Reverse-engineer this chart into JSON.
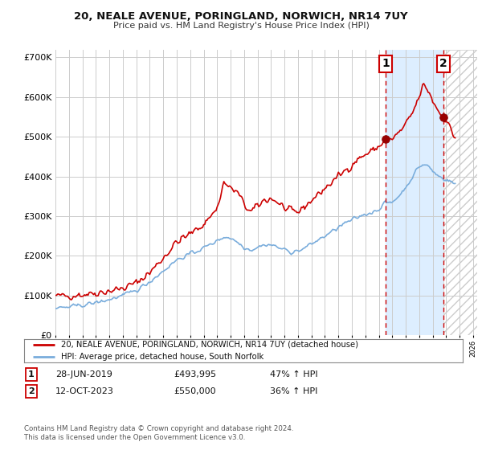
{
  "title": "20, NEALE AVENUE, PORINGLAND, NORWICH, NR14 7UY",
  "subtitle": "Price paid vs. HM Land Registry's House Price Index (HPI)",
  "legend_line1": "20, NEALE AVENUE, PORINGLAND, NORWICH, NR14 7UY (detached house)",
  "legend_line2": "HPI: Average price, detached house, South Norfolk",
  "footnote": "Contains HM Land Registry data © Crown copyright and database right 2024.\nThis data is licensed under the Open Government Licence v3.0.",
  "annotation1_label": "1",
  "annotation1_date": "28-JUN-2019",
  "annotation1_price": "£493,995",
  "annotation1_hpi": "47% ↑ HPI",
  "annotation2_label": "2",
  "annotation2_date": "12-OCT-2023",
  "annotation2_price": "£550,000",
  "annotation2_hpi": "36% ↑ HPI",
  "house_color": "#cc0000",
  "hpi_color": "#7aaddc",
  "marker1_color": "#990000",
  "marker2_color": "#990000",
  "vline_color": "#cc0000",
  "shaded_color": "#ddeeff",
  "hatch_color": "#cccccc",
  "ylim": [
    0,
    720000
  ],
  "yticks": [
    0,
    100000,
    200000,
    300000,
    400000,
    500000,
    600000,
    700000
  ],
  "background_color": "#ffffff",
  "grid_color": "#cccccc",
  "sale1_x": 2019.5,
  "sale1_y": 493995,
  "sale2_x": 2023.79,
  "sale2_y": 550000,
  "shade_start": 2019.5,
  "shade_end": 2023.79,
  "hatch_start": 2023.79,
  "hatch_end": 2026.3,
  "xmin": 1995.0,
  "xmax": 2026.3
}
